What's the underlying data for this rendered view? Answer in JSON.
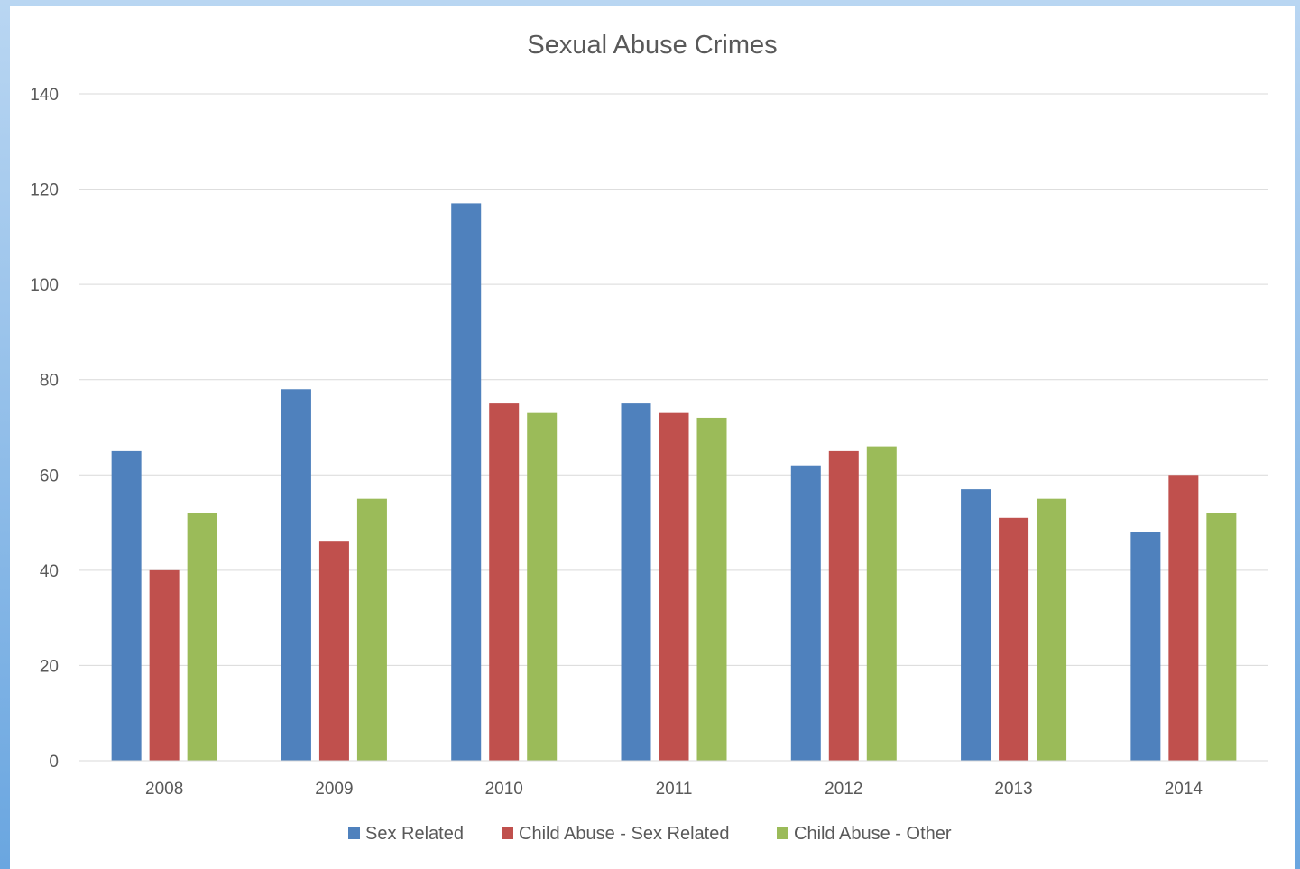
{
  "chart_data": {
    "type": "bar",
    "title": "Sexual Abuse Crimes",
    "xlabel": "",
    "ylabel": "",
    "ylim": [
      0,
      140
    ],
    "y_ticks": [
      "0",
      "20",
      "40",
      "60",
      "80",
      "100",
      "120",
      "140"
    ],
    "grid": true,
    "legend_position": "bottom",
    "categories": [
      "2008",
      "2009",
      "2010",
      "2011",
      "2012",
      "2013",
      "2014"
    ],
    "series": [
      {
        "name": "Sex Related",
        "color": "#4f81bd",
        "values": [
          65,
          78,
          117,
          75,
          62,
          57,
          48
        ]
      },
      {
        "name": "Child Abuse - Sex Related",
        "color": "#c0504d",
        "values": [
          40,
          46,
          75,
          73,
          65,
          51,
          60
        ]
      },
      {
        "name": "Child Abuse - Other",
        "color": "#9bbb59",
        "values": [
          52,
          55,
          73,
          72,
          66,
          55,
          52
        ]
      }
    ]
  }
}
